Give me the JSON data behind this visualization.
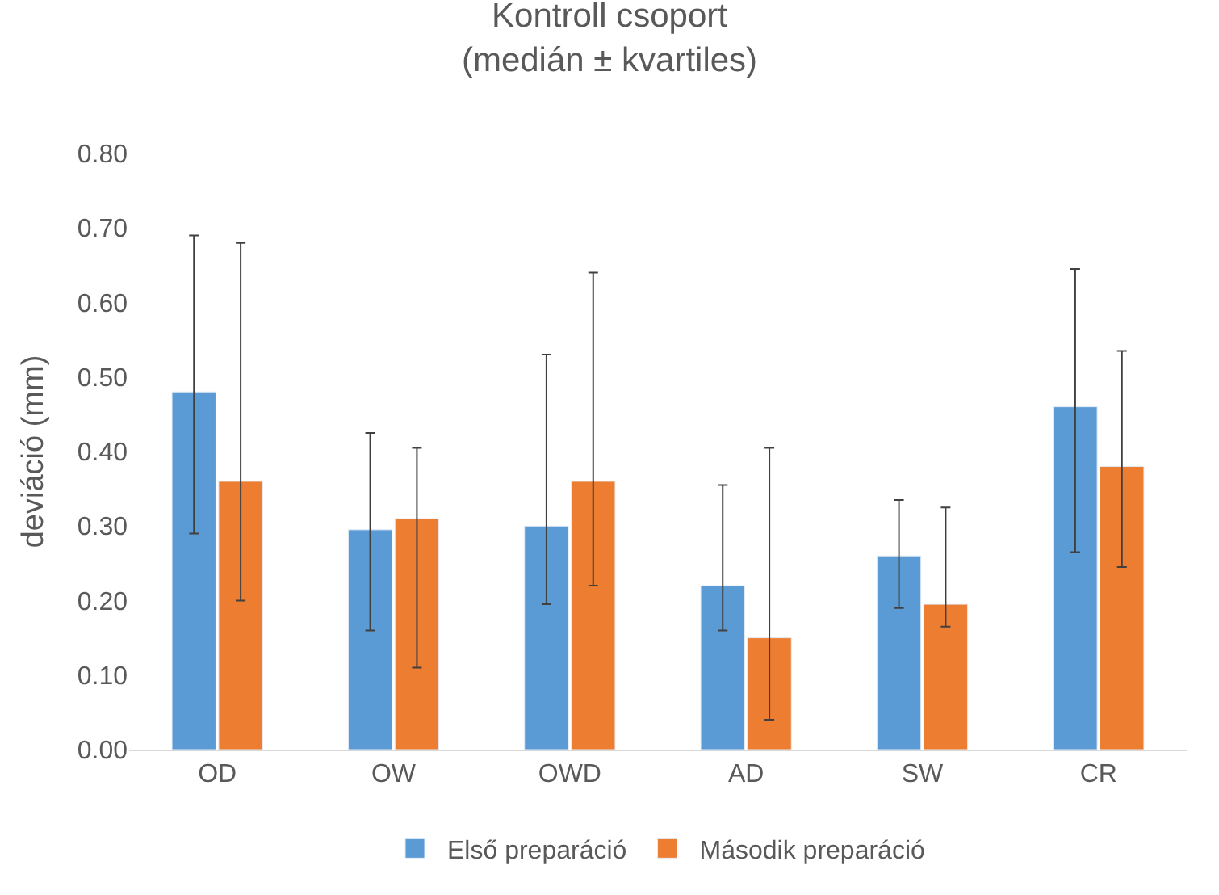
{
  "chart_data": {
    "type": "bar",
    "title": "Kontroll csoport\n(medián ± kvartiles)",
    "ylabel": "deviáció (mm)",
    "categories": [
      "OD",
      "OW",
      "OWD",
      "AD",
      "SW",
      "CR"
    ],
    "series": [
      {
        "name": "Első preparáció",
        "color": "#5b9bd5",
        "values": [
          0.48,
          0.295,
          0.3,
          0.22,
          0.26,
          0.46
        ],
        "errors": [
          [
            0.29,
            0.69
          ],
          [
            0.16,
            0.425
          ],
          [
            0.195,
            0.53
          ],
          [
            0.16,
            0.355
          ],
          [
            0.19,
            0.335
          ],
          [
            0.265,
            0.645
          ]
        ]
      },
      {
        "name": "Második preparáció",
        "color": "#ed7d31",
        "values": [
          0.36,
          0.31,
          0.36,
          0.15,
          0.195,
          0.38
        ],
        "errors": [
          [
            0.2,
            0.68
          ],
          [
            0.11,
            0.405
          ],
          [
            0.22,
            0.64
          ],
          [
            0.04,
            0.405
          ],
          [
            0.165,
            0.325
          ],
          [
            0.245,
            0.535
          ]
        ]
      }
    ],
    "ylim": [
      0,
      0.8
    ],
    "yticks": [
      {
        "value": 0,
        "label": "0.00"
      },
      {
        "value": 0.1,
        "label": "0.10"
      },
      {
        "value": 0.2,
        "label": "0.20"
      },
      {
        "value": 0.3,
        "label": "0.30"
      },
      {
        "value": 0.4,
        "label": "0.40"
      },
      {
        "value": 0.5,
        "label": "0.50"
      },
      {
        "value": 0.6,
        "label": "0.60"
      },
      {
        "value": 0.7,
        "label": "0.70"
      },
      {
        "value": 0.8,
        "label": "0.80"
      }
    ],
    "grid": false,
    "legend": "bottom"
  }
}
